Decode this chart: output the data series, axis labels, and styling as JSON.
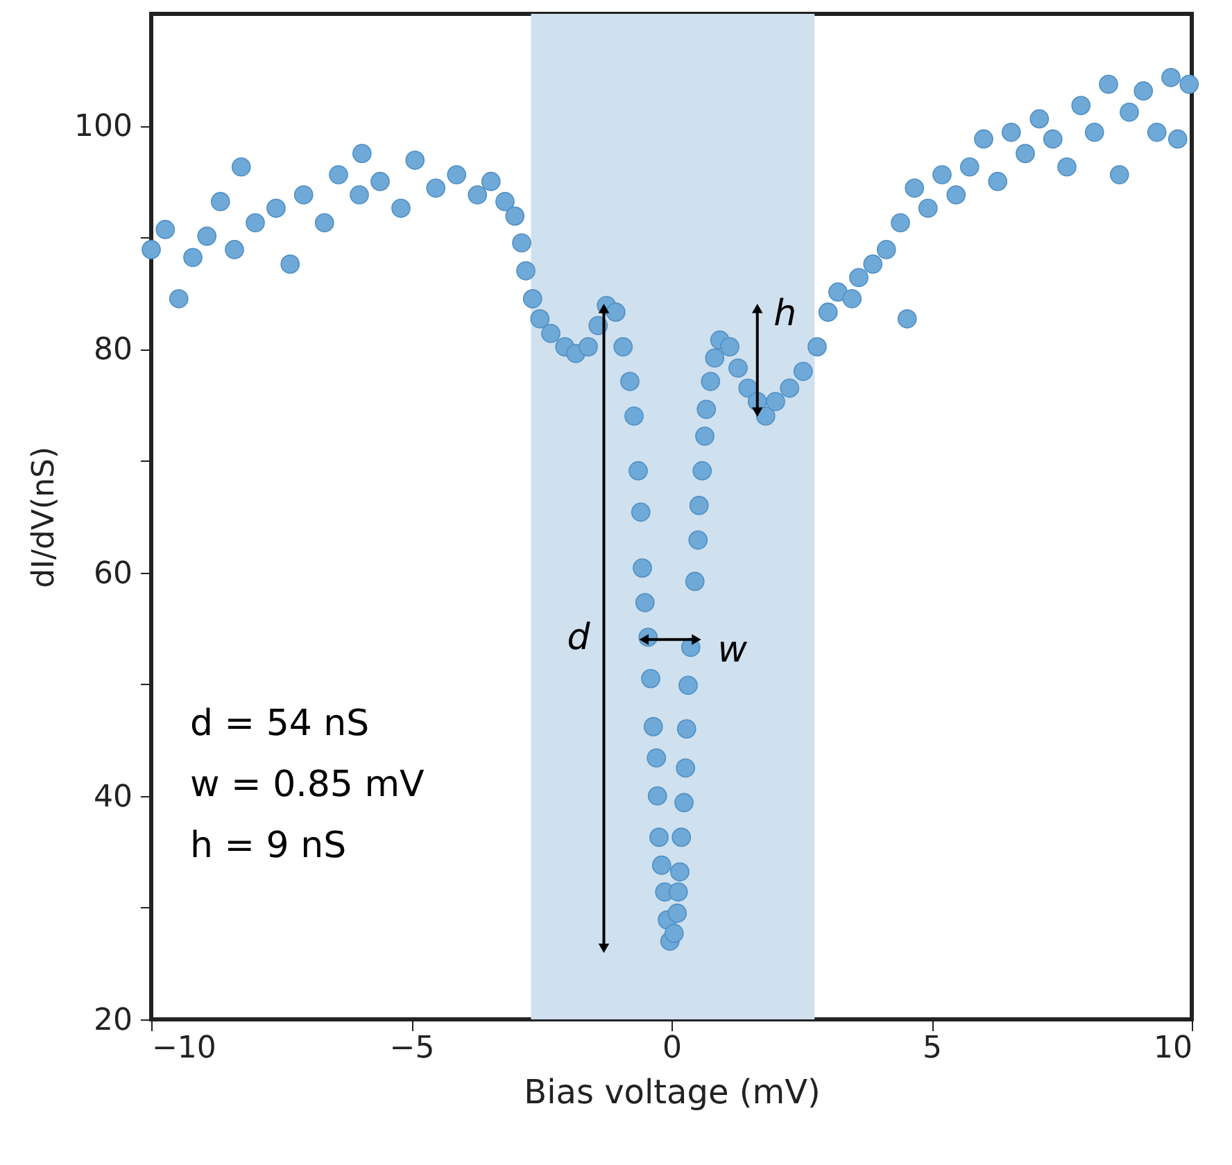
{
  "chart_data": {
    "type": "scatter",
    "xlabel": "Bias voltage (mV)",
    "ylabel": "dI/dV(nS)",
    "marker": "circle",
    "grid": false,
    "xlim": [
      -10,
      10
    ],
    "xticks": [
      -10,
      -5,
      0,
      5,
      10
    ],
    "ylim": [
      20,
      110
    ],
    "yticks": [
      20,
      {
        "value": 30,
        "label": null
      },
      40,
      {
        "value": 50,
        "label": null
      },
      60,
      {
        "value": 70,
        "label": null
      },
      80,
      {
        "value": 90,
        "label": null
      },
      100
    ],
    "bands": [
      {
        "axis": "x",
        "from": -2.7,
        "to": 2.75,
        "color": "#cfe0ee"
      }
    ],
    "annotations": [
      "d",
      {
        "text": "w",
        "x": 0.37,
        "y": 53.3
      },
      {
        "text": "h",
        "x": 1.65,
        "y": 75.3
      },
      "d = 54 nS",
      "w = 0.85 mV",
      "h = 9 nS"
    ],
    "series": [
      {
        "color": "#6fa9d8",
        "x": [
          -10,
          -9.73,
          -9.47,
          -9.2,
          -8.93,
          -8.67,
          -8.4,
          -8.27,
          -8.0,
          -7.6,
          -7.33,
          -7.07,
          -6.67,
          -6.4,
          -6.0,
          -5.95,
          -5.6,
          -5.2,
          -4.93,
          -4.53,
          -4.13,
          -3.73,
          -3.47,
          -3.2,
          -3.01,
          -2.88,
          -2.8,
          -2.67,
          -2.53,
          -2.32,
          -2.05,
          -1.84,
          -1.6,
          -1.41,
          -1.25,
          -1.07,
          -0.93,
          -0.8,
          -0.72,
          -0.64,
          -0.59,
          -0.56,
          -0.51,
          -0.45,
          -0.4,
          -0.35,
          -0.29,
          -0.27,
          -0.24,
          -0.19,
          -0.13,
          -0.08,
          -0.03,
          0.05,
          0.11,
          0.13,
          0.16,
          0.19,
          0.24,
          0.27,
          0.29,
          0.32,
          0.37,
          0.45,
          0.51,
          0.53,
          0.59,
          0.64,
          0.67,
          0.75,
          0.83,
          0.93,
          1.12,
          1.28,
          1.47,
          1.65,
          1.81,
          2.0,
          2.27,
          2.53,
          2.8,
          3.01,
          3.2,
          3.47,
          3.6,
          3.87,
          4.13,
          4.4,
          4.53,
          4.67,
          4.93,
          5.2,
          5.47,
          5.73,
          6.0,
          6.27,
          6.53,
          6.8,
          7.07,
          7.33,
          7.6,
          7.87,
          8.13,
          8.4,
          8.61,
          8.8,
          9.07,
          9.33,
          9.6,
          9.73,
          9.95
        ],
        "values": [
          88.9,
          90.7,
          84.5,
          88.2,
          90.1,
          93.2,
          88.9,
          96.3,
          91.3,
          92.6,
          87.6,
          93.8,
          91.3,
          95.6,
          93.8,
          97.5,
          95.0,
          92.6,
          96.9,
          94.4,
          95.6,
          93.8,
          95.0,
          93.2,
          91.9,
          89.5,
          87.0,
          84.5,
          82.7,
          81.4,
          80.2,
          79.6,
          80.2,
          82.1,
          83.9,
          83.3,
          80.2,
          77.1,
          74.0,
          69.1,
          65.4,
          60.4,
          57.3,
          54.2,
          50.5,
          46.2,
          43.4,
          40.0,
          36.3,
          33.8,
          31.4,
          28.9,
          27.0,
          27.7,
          29.5,
          31.4,
          33.2,
          36.3,
          39.4,
          42.5,
          46.0,
          49.9,
          53.3,
          59.2,
          62.9,
          66.0,
          69.1,
          72.2,
          74.6,
          77.1,
          79.2,
          80.8,
          80.2,
          78.3,
          76.5,
          75.3,
          74.0,
          75.3,
          76.5,
          78.0,
          80.2,
          83.3,
          85.1,
          84.5,
          86.4,
          87.6,
          88.9,
          91.3,
          82.7,
          94.4,
          92.6,
          95.6,
          93.8,
          96.3,
          98.8,
          95.0,
          99.4,
          97.5,
          100.6,
          98.8,
          96.3,
          101.8,
          99.4,
          103.7,
          95.6,
          101.2,
          103.1,
          99.4,
          104.3,
          98.8,
          103.7
        ]
      }
    ]
  }
}
